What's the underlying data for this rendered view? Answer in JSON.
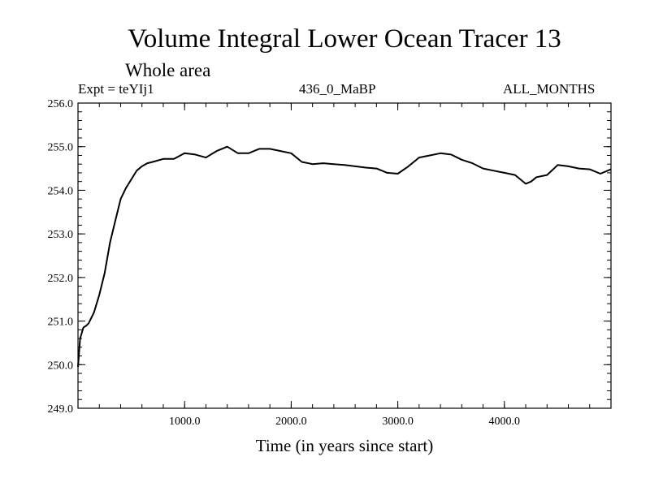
{
  "header": {
    "title": "Volume Integral Lower Ocean Tracer 13",
    "subtitle": "Whole area",
    "experiment": "Expt = teYIj1",
    "period": "436_0_MaBP",
    "months": "ALL_MONTHS"
  },
  "chart_data": {
    "type": "line",
    "title": "Volume Integral Lower Ocean Tracer 13",
    "subtitle": "Whole area",
    "xlabel": "Time (in years since start)",
    "ylabel": "",
    "xlim": [
      0,
      5000
    ],
    "ylim": [
      249.0,
      256.0
    ],
    "xticks": [
      1000,
      2000,
      3000,
      4000
    ],
    "xtick_labels": [
      "1000.0",
      "2000.0",
      "3000.0",
      "4000.0"
    ],
    "yticks": [
      249,
      250,
      251,
      252,
      253,
      254,
      255,
      256
    ],
    "ytick_labels": [
      "249.0",
      "250.0",
      "251.0",
      "252.0",
      "253.0",
      "254.0",
      "255.0",
      "256.0"
    ],
    "grid": false,
    "series": [
      {
        "name": "Tracer 13",
        "color": "#000000",
        "x": [
          0,
          20,
          50,
          80,
          100,
          150,
          200,
          250,
          300,
          350,
          400,
          450,
          500,
          550,
          600,
          650,
          700,
          800,
          900,
          1000,
          1100,
          1200,
          1300,
          1400,
          1500,
          1600,
          1700,
          1800,
          1900,
          2000,
          2100,
          2200,
          2300,
          2400,
          2500,
          2600,
          2700,
          2800,
          2900,
          3000,
          3100,
          3200,
          3300,
          3400,
          3500,
          3600,
          3700,
          3800,
          3900,
          4000,
          4100,
          4200,
          4250,
          4300,
          4400,
          4500,
          4600,
          4700,
          4800,
          4900,
          5000
        ],
        "values": [
          249.95,
          250.6,
          250.85,
          250.9,
          250.95,
          251.2,
          251.6,
          252.1,
          252.8,
          253.3,
          253.8,
          254.05,
          254.25,
          254.45,
          254.55,
          254.62,
          254.65,
          254.72,
          254.72,
          254.85,
          254.82,
          254.75,
          254.9,
          255.0,
          254.85,
          254.85,
          254.95,
          254.95,
          254.9,
          254.85,
          254.65,
          254.6,
          254.62,
          254.6,
          254.58,
          254.55,
          254.52,
          254.5,
          254.4,
          254.38,
          254.55,
          254.75,
          254.8,
          254.85,
          254.82,
          254.7,
          254.62,
          254.5,
          254.45,
          254.4,
          254.35,
          254.15,
          254.2,
          254.3,
          254.35,
          254.58,
          254.55,
          254.5,
          254.48,
          254.38,
          254.48
        ]
      }
    ]
  }
}
